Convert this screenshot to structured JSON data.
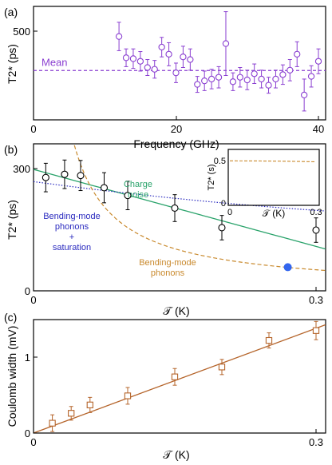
{
  "chart_data": [
    {
      "panel": "(a)",
      "type": "scatter",
      "xlabel": "Frequency (GHz)",
      "ylabel": "T2* (ps)",
      "xlim": [
        0,
        42
      ],
      "ylim": [
        0,
        640
      ],
      "xticks": [
        0,
        20,
        40
      ],
      "yticks": [
        500
      ],
      "colors": {
        "marker": "#8a3fd1",
        "mean": "#8a3fd1"
      },
      "mean": {
        "label": "Mean",
        "value": 278
      },
      "series": [
        {
          "marker": "circle-open",
          "x": [
            12,
            13,
            14,
            15,
            16,
            17,
            18,
            19,
            20,
            21,
            22,
            23,
            24,
            25,
            26,
            27,
            28,
            29,
            30,
            31,
            32,
            33,
            34,
            35,
            36,
            37,
            38,
            39,
            40
          ],
          "y": [
            470,
            350,
            345,
            330,
            295,
            285,
            410,
            370,
            265,
            355,
            340,
            200,
            220,
            230,
            240,
            430,
            215,
            240,
            225,
            260,
            230,
            195,
            230,
            255,
            280,
            370,
            140,
            245,
            330
          ],
          "err": [
            80,
            50,
            55,
            55,
            45,
            50,
            55,
            65,
            55,
            60,
            60,
            45,
            55,
            55,
            60,
            180,
            50,
            55,
            55,
            55,
            50,
            45,
            50,
            55,
            60,
            70,
            90,
            60,
            70
          ]
        }
      ]
    },
    {
      "panel": "(b)",
      "type": "scatter",
      "xlabel": "𝒯 (K)",
      "ylabel": "T2* (ps)",
      "xlim": [
        0,
        0.31
      ],
      "ylim": [
        0,
        360
      ],
      "xticks": [
        0,
        0.3
      ],
      "yticks": [
        0,
        300
      ],
      "colors": {
        "data": "#000000",
        "filled": "#3366ee",
        "charge_noise": "#2aa36b",
        "bending": "#c98a2e",
        "bending_sat": "#2a2abf"
      },
      "series": [
        {
          "marker": "circle-open",
          "x": [
            0.013,
            0.033,
            0.05,
            0.075,
            0.1,
            0.15,
            0.2,
            0.3
          ],
          "y": [
            278,
            286,
            283,
            253,
            234,
            203,
            155,
            149
          ],
          "err": [
            35,
            35,
            37,
            37,
            35,
            33,
            30,
            30
          ]
        },
        {
          "marker": "circle-filled",
          "x": [
            0.27
          ],
          "y": [
            58
          ]
        }
      ],
      "annotations": [
        {
          "text": "Charge",
          "color": "#2aa36b"
        },
        {
          "text": "noise",
          "color": "#2aa36b"
        },
        {
          "text": "Bending-mode",
          "color": "#2a2abf"
        },
        {
          "text": "phonons",
          "color": "#2a2abf"
        },
        {
          "text": "+",
          "color": "#2a2abf"
        },
        {
          "text": "saturation",
          "color": "#2a2abf"
        },
        {
          "text": "Bending-mode",
          "color": "#c98a2e"
        },
        {
          "text": "phonons",
          "color": "#c98a2e"
        }
      ],
      "inset": {
        "xlabel": "𝒯 (K)",
        "ylabel": "T2* (s)",
        "xlim": [
          0,
          0.31
        ],
        "ylim": [
          0,
          0.65
        ],
        "xticks": [
          0,
          0.3
        ],
        "yticks": [
          0,
          0.5
        ]
      }
    },
    {
      "panel": "(c)",
      "type": "scatter",
      "xlabel": "𝒯 (K)",
      "ylabel": "Coulomb width (mV)",
      "xlim": [
        0,
        0.31
      ],
      "ylim": [
        0,
        1.5
      ],
      "xticks": [
        0,
        0.3
      ],
      "yticks": [
        0,
        1
      ],
      "colors": {
        "marker": "#b5642a",
        "fit": "#b5642a"
      },
      "series": [
        {
          "marker": "square-open",
          "x": [
            0.02,
            0.04,
            0.06,
            0.1,
            0.15,
            0.2,
            0.25,
            0.3
          ],
          "y": [
            0.13,
            0.26,
            0.37,
            0.49,
            0.74,
            0.87,
            1.22,
            1.35
          ],
          "err": [
            0.11,
            0.09,
            0.1,
            0.11,
            0.11,
            0.1,
            0.1,
            0.12
          ]
        }
      ]
    }
  ]
}
